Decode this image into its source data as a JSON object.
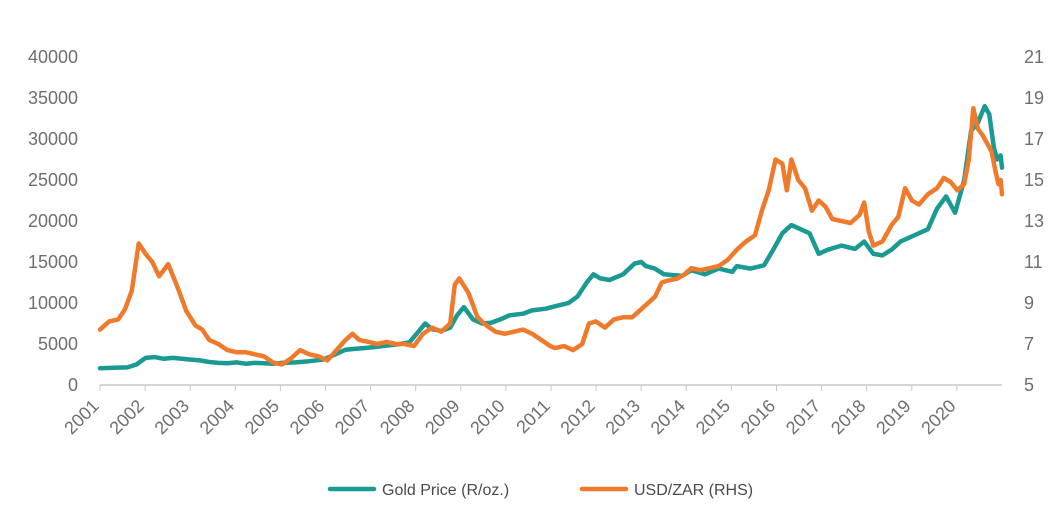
{
  "chart_data": {
    "type": "line",
    "title": "",
    "xlabel": "",
    "ylabel": "",
    "x_tick_labels": [
      "2001",
      "2002",
      "2003",
      "2004",
      "2005",
      "2006",
      "2007",
      "2008",
      "2009",
      "2010",
      "2011",
      "2012",
      "2013",
      "2014",
      "2015",
      "2016",
      "2017",
      "2018",
      "2019",
      "2020"
    ],
    "y_left": {
      "ylim": [
        0,
        40000
      ],
      "ticks": [
        "0",
        "5000",
        "10000",
        "15000",
        "20000",
        "25000",
        "30000",
        "35000",
        "40000"
      ]
    },
    "y_right": {
      "ylim": [
        5,
        21
      ],
      "ticks": [
        "5",
        "7",
        "9",
        "11",
        "13",
        "15",
        "17",
        "19",
        "21"
      ]
    },
    "grid": false,
    "legend_position": "bottom",
    "x_range": [
      2001.0,
      2020.83
    ],
    "series": [
      {
        "name": "Gold Price (R/oz.)",
        "axis": "left",
        "color": "#1a9a92",
        "points": [
          [
            2001.0,
            2050
          ],
          [
            2001.3,
            2100
          ],
          [
            2001.6,
            2150
          ],
          [
            2001.8,
            2500
          ],
          [
            2002.0,
            3300
          ],
          [
            2002.2,
            3400
          ],
          [
            2002.4,
            3200
          ],
          [
            2002.6,
            3300
          ],
          [
            2002.8,
            3200
          ],
          [
            2003.0,
            3100
          ],
          [
            2003.2,
            3000
          ],
          [
            2003.4,
            2800
          ],
          [
            2003.6,
            2700
          ],
          [
            2003.8,
            2650
          ],
          [
            2004.0,
            2750
          ],
          [
            2004.2,
            2600
          ],
          [
            2004.4,
            2700
          ],
          [
            2004.6,
            2650
          ],
          [
            2004.8,
            2600
          ],
          [
            2005.0,
            2700
          ],
          [
            2005.3,
            2750
          ],
          [
            2005.6,
            2900
          ],
          [
            2005.9,
            3100
          ],
          [
            2006.0,
            3300
          ],
          [
            2006.2,
            3800
          ],
          [
            2006.4,
            4300
          ],
          [
            2006.6,
            4400
          ],
          [
            2006.8,
            4500
          ],
          [
            2007.0,
            4600
          ],
          [
            2007.3,
            4800
          ],
          [
            2007.6,
            5000
          ],
          [
            2007.8,
            5200
          ],
          [
            2008.0,
            6500
          ],
          [
            2008.15,
            7500
          ],
          [
            2008.3,
            6800
          ],
          [
            2008.5,
            6600
          ],
          [
            2008.7,
            7000
          ],
          [
            2008.85,
            8500
          ],
          [
            2009.0,
            9500
          ],
          [
            2009.2,
            8000
          ],
          [
            2009.4,
            7500
          ],
          [
            2009.6,
            7600
          ],
          [
            2009.8,
            8000
          ],
          [
            2010.0,
            8500
          ],
          [
            2010.3,
            8700
          ],
          [
            2010.5,
            9100
          ],
          [
            2010.8,
            9300
          ],
          [
            2011.0,
            9600
          ],
          [
            2011.3,
            10000
          ],
          [
            2011.5,
            10800
          ],
          [
            2011.7,
            12500
          ],
          [
            2011.85,
            13500
          ],
          [
            2012.0,
            13000
          ],
          [
            2012.2,
            12800
          ],
          [
            2012.5,
            13500
          ],
          [
            2012.75,
            14800
          ],
          [
            2012.9,
            15000
          ],
          [
            2013.0,
            14500
          ],
          [
            2013.2,
            14200
          ],
          [
            2013.4,
            13500
          ],
          [
            2013.6,
            13400
          ],
          [
            2013.8,
            13300
          ],
          [
            2014.0,
            14000
          ],
          [
            2014.3,
            13500
          ],
          [
            2014.6,
            14200
          ],
          [
            2014.9,
            13800
          ],
          [
            2015.0,
            14500
          ],
          [
            2015.3,
            14200
          ],
          [
            2015.6,
            14600
          ],
          [
            2015.8,
            16500
          ],
          [
            2016.0,
            18500
          ],
          [
            2016.2,
            19500
          ],
          [
            2016.4,
            19000
          ],
          [
            2016.6,
            18500
          ],
          [
            2016.8,
            16000
          ],
          [
            2017.0,
            16500
          ],
          [
            2017.3,
            17000
          ],
          [
            2017.6,
            16600
          ],
          [
            2017.8,
            17500
          ],
          [
            2018.0,
            16000
          ],
          [
            2018.2,
            15800
          ],
          [
            2018.4,
            16500
          ],
          [
            2018.6,
            17500
          ],
          [
            2018.8,
            18000
          ],
          [
            2019.0,
            18500
          ],
          [
            2019.2,
            19000
          ],
          [
            2019.4,
            21500
          ],
          [
            2019.6,
            23000
          ],
          [
            2019.8,
            21000
          ],
          [
            2020.0,
            25000
          ],
          [
            2020.15,
            31000
          ],
          [
            2020.3,
            32000
          ],
          [
            2020.45,
            34000
          ],
          [
            2020.55,
            33000
          ],
          [
            2020.65,
            29000
          ],
          [
            2020.72,
            27500
          ],
          [
            2020.8,
            28000
          ],
          [
            2020.83,
            26500
          ]
        ]
      },
      {
        "name": "USD/ZAR (RHS)",
        "axis": "right",
        "color": "#f07a2b",
        "points": [
          [
            2001.0,
            7.7
          ],
          [
            2001.2,
            8.1
          ],
          [
            2001.4,
            8.2
          ],
          [
            2001.55,
            8.7
          ],
          [
            2001.7,
            9.6
          ],
          [
            2001.85,
            11.9
          ],
          [
            2002.0,
            11.4
          ],
          [
            2002.15,
            11.0
          ],
          [
            2002.3,
            10.3
          ],
          [
            2002.5,
            10.9
          ],
          [
            2002.7,
            9.8
          ],
          [
            2002.9,
            8.6
          ],
          [
            2003.1,
            7.9
          ],
          [
            2003.25,
            7.7
          ],
          [
            2003.4,
            7.2
          ],
          [
            2003.6,
            7.0
          ],
          [
            2003.8,
            6.7
          ],
          [
            2004.0,
            6.6
          ],
          [
            2004.2,
            6.6
          ],
          [
            2004.4,
            6.5
          ],
          [
            2004.6,
            6.4
          ],
          [
            2004.8,
            6.1
          ],
          [
            2005.0,
            6.0
          ],
          [
            2005.2,
            6.3
          ],
          [
            2005.4,
            6.7
          ],
          [
            2005.6,
            6.5
          ],
          [
            2005.8,
            6.4
          ],
          [
            2006.0,
            6.2
          ],
          [
            2006.2,
            6.7
          ],
          [
            2006.4,
            7.2
          ],
          [
            2006.55,
            7.5
          ],
          [
            2006.7,
            7.2
          ],
          [
            2006.9,
            7.1
          ],
          [
            2007.1,
            7.0
          ],
          [
            2007.3,
            7.1
          ],
          [
            2007.5,
            7.0
          ],
          [
            2007.7,
            7.0
          ],
          [
            2007.9,
            6.9
          ],
          [
            2008.1,
            7.5
          ],
          [
            2008.3,
            7.8
          ],
          [
            2008.5,
            7.6
          ],
          [
            2008.7,
            8.0
          ],
          [
            2008.8,
            9.9
          ],
          [
            2008.9,
            10.2
          ],
          [
            2009.1,
            9.5
          ],
          [
            2009.3,
            8.3
          ],
          [
            2009.5,
            7.9
          ],
          [
            2009.7,
            7.6
          ],
          [
            2009.9,
            7.5
          ],
          [
            2010.1,
            7.6
          ],
          [
            2010.3,
            7.7
          ],
          [
            2010.5,
            7.5
          ],
          [
            2010.7,
            7.2
          ],
          [
            2010.9,
            6.9
          ],
          [
            2011.0,
            6.8
          ],
          [
            2011.2,
            6.9
          ],
          [
            2011.4,
            6.7
          ],
          [
            2011.6,
            7.0
          ],
          [
            2011.75,
            8.0
          ],
          [
            2011.9,
            8.1
          ],
          [
            2012.1,
            7.8
          ],
          [
            2012.3,
            8.2
          ],
          [
            2012.5,
            8.3
          ],
          [
            2012.7,
            8.3
          ],
          [
            2012.9,
            8.7
          ],
          [
            2013.0,
            8.9
          ],
          [
            2013.2,
            9.3
          ],
          [
            2013.35,
            10.0
          ],
          [
            2013.5,
            10.1
          ],
          [
            2013.7,
            10.2
          ],
          [
            2013.85,
            10.4
          ],
          [
            2014.0,
            10.7
          ],
          [
            2014.2,
            10.6
          ],
          [
            2014.4,
            10.7
          ],
          [
            2014.6,
            10.8
          ],
          [
            2014.8,
            11.1
          ],
          [
            2015.0,
            11.6
          ],
          [
            2015.2,
            12.0
          ],
          [
            2015.4,
            12.3
          ],
          [
            2015.55,
            13.5
          ],
          [
            2015.7,
            14.5
          ],
          [
            2015.85,
            16.0
          ],
          [
            2016.0,
            15.8
          ],
          [
            2016.1,
            14.5
          ],
          [
            2016.2,
            16.0
          ],
          [
            2016.35,
            15.0
          ],
          [
            2016.5,
            14.6
          ],
          [
            2016.65,
            13.5
          ],
          [
            2016.8,
            14.0
          ],
          [
            2016.95,
            13.7
          ],
          [
            2017.1,
            13.1
          ],
          [
            2017.3,
            13.0
          ],
          [
            2017.5,
            12.9
          ],
          [
            2017.7,
            13.3
          ],
          [
            2017.8,
            13.9
          ],
          [
            2017.9,
            12.5
          ],
          [
            2018.0,
            11.8
          ],
          [
            2018.2,
            12.0
          ],
          [
            2018.4,
            12.8
          ],
          [
            2018.55,
            13.2
          ],
          [
            2018.7,
            14.6
          ],
          [
            2018.85,
            14.0
          ],
          [
            2019.0,
            13.8
          ],
          [
            2019.2,
            14.3
          ],
          [
            2019.4,
            14.6
          ],
          [
            2019.55,
            15.1
          ],
          [
            2019.7,
            14.9
          ],
          [
            2019.85,
            14.5
          ],
          [
            2020.0,
            14.8
          ],
          [
            2020.1,
            16.0
          ],
          [
            2020.2,
            18.5
          ],
          [
            2020.3,
            17.5
          ],
          [
            2020.4,
            17.2
          ],
          [
            2020.5,
            16.8
          ],
          [
            2020.6,
            16.4
          ],
          [
            2020.68,
            15.5
          ],
          [
            2020.75,
            14.8
          ],
          [
            2020.8,
            15.0
          ],
          [
            2020.83,
            14.3
          ]
        ]
      }
    ]
  }
}
